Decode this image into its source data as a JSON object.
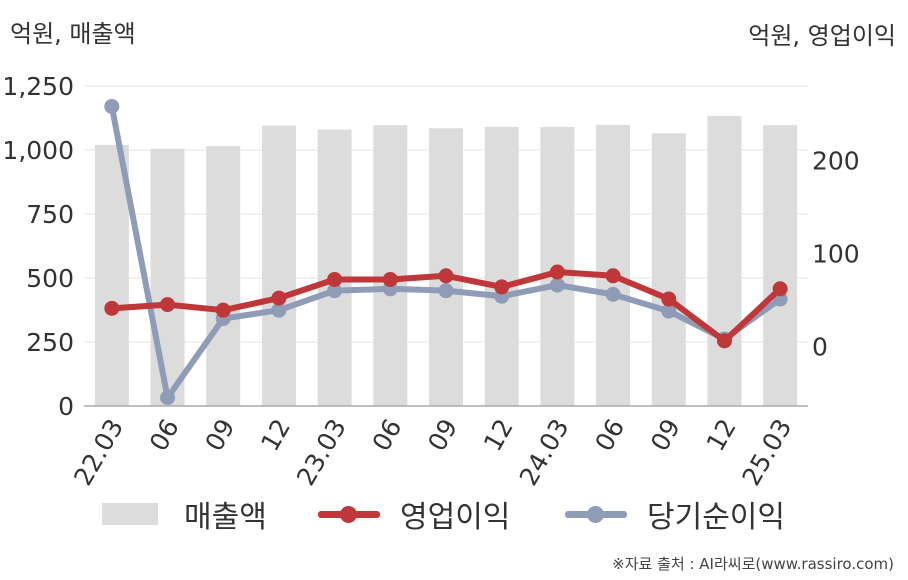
{
  "units": {
    "left": "억원, 매출액",
    "right": "억원, 영업이익"
  },
  "source": "※자료 출처 : AI라씨로(www.rassiro.com)",
  "colors": {
    "bar": "#dcdcdc",
    "operating_profit": "#c0373a",
    "net_income": "#8e9cb7",
    "grid": "#e6e6e6",
    "axis": "#aaaaaa",
    "text": "#333333"
  },
  "chart_data": {
    "type": "bar+line",
    "categories": [
      "22.03",
      "06",
      "09",
      "12",
      "23.03",
      "06",
      "09",
      "12",
      "24.03",
      "06",
      "09",
      "12",
      "25.03"
    ],
    "y_left": {
      "label": "억원, 매출액",
      "ylim": [
        0,
        1250
      ],
      "ticks": [
        0,
        250,
        500,
        750,
        1000,
        1250
      ],
      "tick_labels": [
        "0",
        "250",
        "500",
        "750",
        "1,000",
        "1,250"
      ]
    },
    "y_right": {
      "label": "억원, 영업이익",
      "ylim": [
        -64,
        280
      ],
      "ticks": [
        0,
        100,
        200
      ],
      "tick_labels": [
        "0",
        "100",
        "200"
      ]
    },
    "grid": true,
    "legend_position": "bottom",
    "series": [
      {
        "name": "매출액",
        "kind": "bar",
        "axis": "left",
        "values": [
          1020,
          1005,
          1015,
          1095,
          1080,
          1097,
          1085,
          1090,
          1090,
          1098,
          1065,
          1133,
          1097
        ]
      },
      {
        "name": "영업이익",
        "kind": "line",
        "axis": "right",
        "values": [
          41,
          45,
          39,
          52,
          72,
          72,
          76,
          64,
          80,
          76,
          51,
          6,
          62
        ]
      },
      {
        "name": "당기순이익",
        "kind": "line",
        "axis": "right",
        "values": [
          258,
          -55,
          30,
          39,
          60,
          62,
          60,
          54,
          66,
          56,
          38,
          8,
          51
        ]
      }
    ]
  }
}
